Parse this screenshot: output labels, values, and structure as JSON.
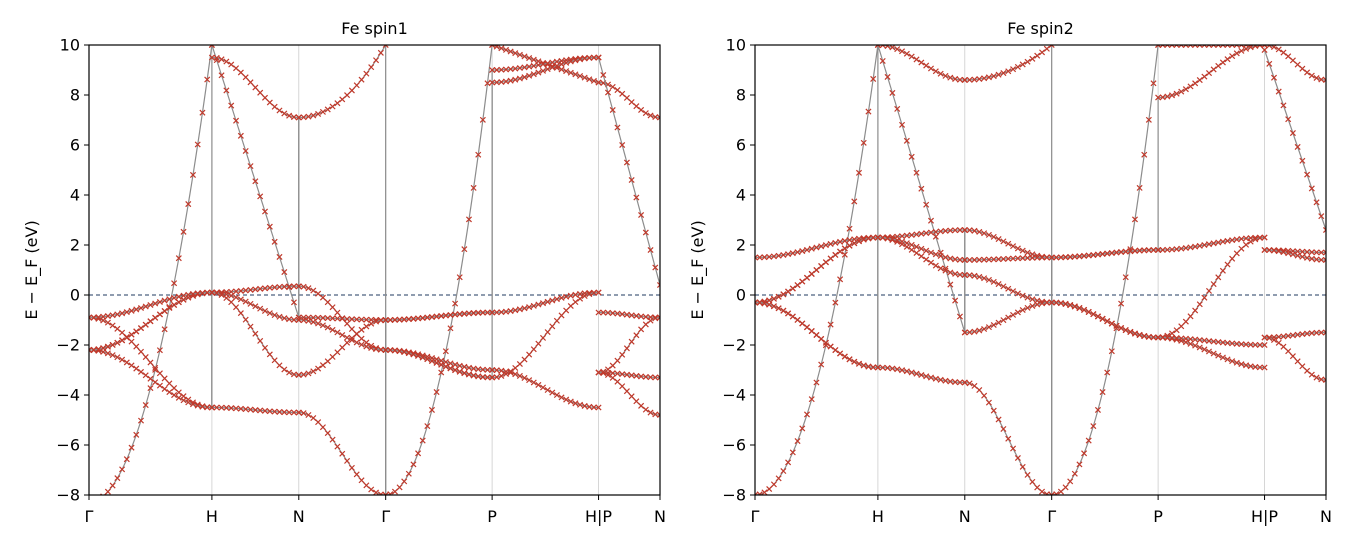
{
  "chart_data": [
    {
      "type": "line",
      "title": "Fe  spin1",
      "ylabel": "E − E_F  (eV)",
      "ylim": [
        -8,
        10
      ],
      "yticks": [
        "−8",
        "−6",
        "−4",
        "−2",
        "0",
        "2",
        "4",
        "6",
        "8",
        "10"
      ],
      "xticks": [
        {
          "label": "Γ",
          "x": 0.0
        },
        {
          "label": "H",
          "x": 1.0
        },
        {
          "label": "N",
          "x": 1.707
        },
        {
          "label": "Γ",
          "x": 2.414
        },
        {
          "label": "P",
          "x": 3.28
        },
        {
          "label": "H|P",
          "x": 4.146
        },
        {
          "label": "N",
          "x": 4.646
        }
      ],
      "fermi_level": 0,
      "series": [
        {
          "x": [
            0,
            0.5,
            1.0
          ],
          "y": [
            -8.3,
            -1.0,
            10.0
          ]
        },
        {
          "x": [
            0,
            0.5,
            1.0
          ],
          "y": [
            -2.2,
            -1.2,
            0.1
          ]
        },
        {
          "x": [
            0,
            0.5,
            1.0
          ],
          "y": [
            -2.2,
            -1.6,
            0.1
          ]
        },
        {
          "x": [
            0,
            0.5,
            1.0
          ],
          "y": [
            -0.9,
            -3.2,
            -4.5
          ]
        },
        {
          "x": [
            0,
            0.5,
            1.0
          ],
          "y": [
            -2.2,
            -4.0,
            -4.5
          ]
        }
      ]
    },
    {
      "type": "line",
      "title": "Fe  spin2",
      "ylabel": "E − E_F  (eV)",
      "ylim": [
        -8,
        10
      ],
      "yticks": [
        "−8",
        "−6",
        "−4",
        "−2",
        "0",
        "2",
        "4",
        "6",
        "8",
        "10"
      ],
      "xticks": [
        {
          "label": "Γ",
          "x": 0.0
        },
        {
          "label": "H",
          "x": 1.0
        },
        {
          "label": "N",
          "x": 1.707
        },
        {
          "label": "Γ",
          "x": 2.414
        },
        {
          "label": "P",
          "x": 3.28
        },
        {
          "label": "H|P",
          "x": 4.146
        },
        {
          "label": "N",
          "x": 4.646
        }
      ],
      "fermi_level": 0,
      "series": [
        {
          "x": [
            0,
            0.5,
            1.0
          ],
          "y": [
            -8.0,
            -2.0,
            10.0
          ]
        },
        {
          "x": [
            0,
            0.5,
            1.0
          ],
          "y": [
            1.5,
            2.0,
            2.3
          ]
        },
        {
          "x": [
            0,
            0.5,
            1.0
          ],
          "y": [
            -0.3,
            1.0,
            2.3
          ]
        },
        {
          "x": [
            0,
            0.5,
            1.0
          ],
          "y": [
            -0.3,
            -2.0,
            -2.9
          ]
        },
        {
          "x": [
            0,
            0.5,
            1.0
          ],
          "y": [
            -0.3,
            -1.8,
            -2.9
          ]
        }
      ]
    }
  ]
}
